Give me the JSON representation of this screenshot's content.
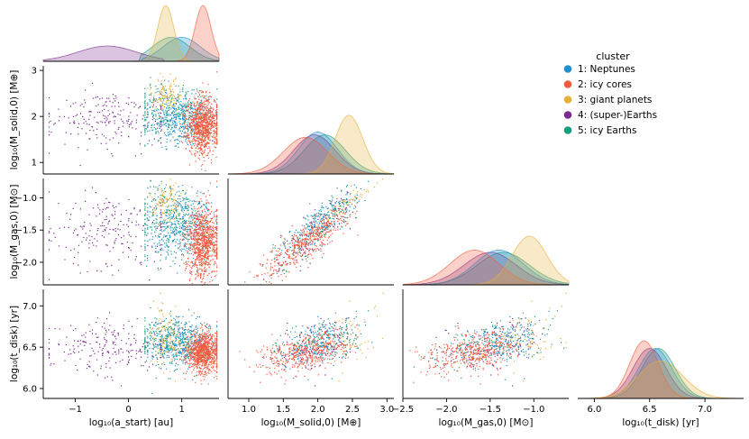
{
  "chart_data": {
    "type": "pairplot",
    "variables": [
      {
        "key": "a",
        "label": "log₁₀(a_start) [au]",
        "range": [
          -1.6,
          1.7
        ],
        "ticks": [
          -1,
          0,
          1
        ]
      },
      {
        "key": "ms",
        "label": "log₁₀(M_solid,0) [M⊕]",
        "range": [
          0.7,
          3.1
        ],
        "ticks": [
          1.0,
          1.5,
          2.0,
          2.5,
          3.0
        ]
      },
      {
        "key": "mg",
        "label": "log₁₀(M_gas,0) [M⊙]",
        "range": [
          -2.5,
          -0.6
        ],
        "ticks": [
          -2.5,
          -2.0,
          -1.5,
          -1.0
        ]
      },
      {
        "key": "t",
        "label": "log₁₀(t_disk) [yr]",
        "range": [
          5.85,
          7.35
        ],
        "ticks": [
          6.0,
          6.5,
          7.0
        ]
      }
    ],
    "axis_labels": {
      "x": [
        "log₁₀(a_start) [au]",
        "log₁₀(M_solid,0) [M⊕]",
        "log₁₀(M_gas,0) [M⊙]",
        "log₁₀(t_disk) [yr]"
      ],
      "y": [
        "log₁₀(M_solid,0) [M⊕]",
        "log₁₀(M_gas,0) [M⊙]",
        "log₁₀(t_disk) [yr]"
      ]
    },
    "y_ranges": {
      "ms": [
        0.75,
        3.1
      ],
      "mg": [
        -2.35,
        -0.7
      ],
      "t": [
        5.88,
        7.2
      ]
    },
    "y_ticks": {
      "ms": [
        1,
        2,
        3
      ],
      "mg": [
        -2.0,
        -1.5,
        -1.0
      ],
      "t": [
        6.0,
        6.5,
        7.0
      ]
    },
    "legend": {
      "title": "cluster",
      "placement": "top-right",
      "entries": [
        "1: Neptunes",
        "2: icy cores",
        "3: giant planets",
        "4: (super-)Earths",
        "5: icy Earths"
      ]
    },
    "clusters": [
      {
        "name": "1: Neptunes",
        "color": "#1f8fd1",
        "a": {
          "mean": 1.0,
          "sd": 0.35,
          "min": 0.35,
          "max": 1.65
        },
        "ms": {
          "mean": 2.0,
          "sd": 0.28
        },
        "mg": {
          "mean": -1.4,
          "sd": 0.28
        },
        "t": {
          "mean": 6.55,
          "sd": 0.15
        }
      },
      {
        "name": "2: icy cores",
        "color": "#f05a3c",
        "a": {
          "mean": 1.4,
          "sd": 0.15,
          "min": 0.95,
          "max": 1.65
        },
        "ms": {
          "mean": 1.82,
          "sd": 0.32
        },
        "mg": {
          "mean": -1.68,
          "sd": 0.28
        },
        "t": {
          "mean": 6.45,
          "sd": 0.13
        }
      },
      {
        "name": "3: giant planets",
        "color": "#e6b13a",
        "a": {
          "mean": 0.7,
          "sd": 0.15,
          "min": 0.35,
          "max": 1.1
        },
        "ms": {
          "mean": 2.45,
          "sd": 0.2
        },
        "mg": {
          "mean": -1.05,
          "sd": 0.2
        },
        "t": {
          "mean": 6.6,
          "sd": 0.2
        }
      },
      {
        "name": "4: (super-)Earths",
        "color": "#7b2a8e",
        "a": {
          "mean": -0.4,
          "sd": 0.55,
          "min": -1.5,
          "max": 0.6
        },
        "ms": {
          "mean": 1.95,
          "sd": 0.3
        },
        "mg": {
          "mean": -1.5,
          "sd": 0.3
        },
        "t": {
          "mean": 6.5,
          "sd": 0.15
        }
      },
      {
        "name": "5: icy Earths",
        "color": "#149c7e",
        "a": {
          "mean": 0.8,
          "sd": 0.35,
          "min": 0.3,
          "max": 1.65
        },
        "ms": {
          "mean": 2.1,
          "sd": 0.3
        },
        "mg": {
          "mean": -1.35,
          "sd": 0.3
        },
        "t": {
          "mean": 6.58,
          "sd": 0.15
        }
      }
    ]
  }
}
